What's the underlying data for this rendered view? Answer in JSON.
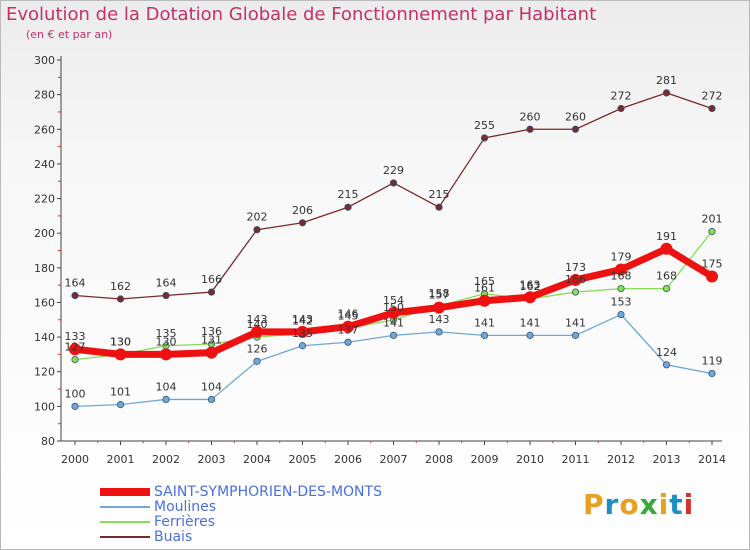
{
  "title": "Evolution de la Dotation Globale de Fonctionnement par Habitant",
  "subtitle": "(en € et par an)",
  "logo": {
    "text": "Proxiti",
    "colors": [
      "#e8a020",
      "#1e8ec8",
      "#e8a020",
      "#38a838",
      "#e8a020",
      "#1e8ec8",
      "#d8302c"
    ]
  },
  "chart_data": {
    "type": "line",
    "title": "Evolution de la Dotation Globale de Fonctionnement par Habitant",
    "subtitle": "(en € et par an)",
    "xlabel": "",
    "ylabel": "",
    "ylim": [
      80,
      300
    ],
    "yticks": [
      80,
      100,
      120,
      140,
      160,
      180,
      200,
      220,
      240,
      260,
      280,
      300
    ],
    "grid": false,
    "legend_position": "bottom-left",
    "x": [
      "2000",
      "2001",
      "2002",
      "2003",
      "2004",
      "2005",
      "2006",
      "2007",
      "2008",
      "2009",
      "2010",
      "2011",
      "2012",
      "2013",
      "2014"
    ],
    "series": [
      {
        "name": "SAINT-SYMPHORIEN-DES-MONTS",
        "color": "#ee1111",
        "values": [
          133,
          130,
          130,
          131,
          143,
          143,
          146,
          154,
          157,
          161,
          163,
          173,
          179,
          191,
          175
        ]
      },
      {
        "name": "Moulines",
        "color": "#6fa8d8",
        "values": [
          100,
          101,
          104,
          104,
          126,
          135,
          137,
          141,
          143,
          141,
          141,
          141,
          153,
          124,
          119
        ]
      },
      {
        "name": "Ferrières",
        "color": "#88dd55",
        "values": [
          127,
          130,
          135,
          136,
          140,
          142,
          145,
          150,
          158,
          165,
          162,
          166,
          168,
          168,
          201
        ]
      },
      {
        "name": "Buais",
        "color": "#7a2a2a",
        "values": [
          164,
          162,
          164,
          166,
          202,
          206,
          215,
          229,
          215,
          255,
          260,
          260,
          272,
          281,
          272
        ]
      }
    ]
  }
}
